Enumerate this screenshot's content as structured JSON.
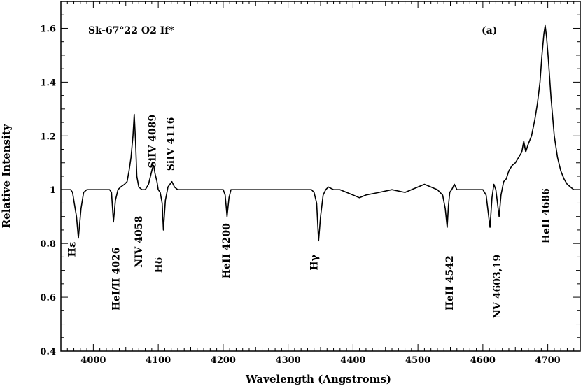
{
  "chart_data": {
    "type": "line",
    "title": "Sk-67°22 O2 If*",
    "panel_label": "(a)",
    "xlabel": "Wavelength (Angstroms)",
    "ylabel": "Relative Intensity",
    "xlim": [
      3950,
      4750
    ],
    "ylim": [
      0.4,
      1.7
    ],
    "x_ticks": [
      4000,
      4100,
      4200,
      4300,
      4400,
      4500,
      4600,
      4700
    ],
    "x_tick_labels": [
      "4000",
      "4100",
      "4200",
      "4300",
      "4400",
      "4500",
      "4600",
      "4700"
    ],
    "y_ticks": [
      0.4,
      0.6,
      0.8,
      1.0,
      1.2,
      1.4,
      1.6
    ],
    "y_tick_labels": [
      "0.4",
      "0.6",
      "0.8",
      "1",
      "1.2",
      "1.4",
      "1.6"
    ],
    "grid": false,
    "series": [
      {
        "x": [
          3950,
          3960,
          3965,
          3968,
          3970,
          3974,
          3977,
          3981,
          3985,
          3990,
          4000,
          4010,
          4020,
          4025,
          4028,
          4031,
          4034,
          4038,
          4042,
          4048,
          4052,
          4055,
          4058,
          4061,
          4063,
          4065,
          4067,
          4070,
          4075,
          4080,
          4085,
          4088,
          4091,
          4093,
          4095,
          4098,
          4100,
          4103,
          4106,
          4108,
          4111,
          4115,
          4118,
          4121,
          4125,
          4130,
          4140,
          4150,
          4160,
          4170,
          4180,
          4190,
          4195,
          4200,
          4203,
          4206,
          4209,
          4212,
          4216,
          4220,
          4240,
          4260,
          4280,
          4300,
          4320,
          4330,
          4336,
          4340,
          4344,
          4347,
          4350,
          4354,
          4358,
          4362,
          4370,
          4380,
          4400,
          4410,
          4420,
          4440,
          4460,
          4480,
          4500,
          4510,
          4520,
          4530,
          4538,
          4542,
          4545,
          4547,
          4549,
          4552,
          4556,
          4560,
          4570,
          4580,
          4590,
          4600,
          4605,
          4608,
          4611,
          4614,
          4617,
          4620,
          4622,
          4625,
          4628,
          4632,
          4636,
          4640,
          4645,
          4650,
          4655,
          4660,
          4663,
          4666,
          4670,
          4675,
          4680,
          4684,
          4688,
          4691,
          4694,
          4696,
          4698,
          4701,
          4705,
          4710,
          4715,
          4720,
          4725,
          4730,
          4735,
          4740,
          4745,
          4750
        ],
        "values": [
          1.0,
          1.0,
          1.0,
          0.99,
          0.96,
          0.9,
          0.82,
          0.93,
          0.99,
          1.0,
          1.0,
          1.0,
          1.0,
          1.0,
          0.99,
          0.88,
          0.96,
          1.0,
          1.01,
          1.02,
          1.03,
          1.07,
          1.12,
          1.2,
          1.28,
          1.18,
          1.05,
          1.01,
          1.0,
          1.0,
          1.02,
          1.05,
          1.08,
          1.09,
          1.06,
          1.03,
          1.0,
          0.99,
          0.95,
          0.85,
          0.96,
          1.01,
          1.02,
          1.03,
          1.01,
          1.0,
          1.0,
          1.0,
          1.0,
          1.0,
          1.0,
          1.0,
          1.0,
          1.0,
          0.98,
          0.9,
          0.97,
          1.0,
          1.0,
          1.0,
          1.0,
          1.0,
          1.0,
          1.0,
          1.0,
          1.0,
          1.0,
          0.99,
          0.95,
          0.81,
          0.9,
          0.98,
          1.0,
          1.01,
          1.0,
          1.0,
          0.98,
          0.97,
          0.98,
          0.99,
          1.0,
          0.99,
          1.01,
          1.02,
          1.01,
          1.0,
          0.98,
          0.93,
          0.86,
          0.94,
          0.99,
          1.0,
          1.02,
          1.0,
          1.0,
          1.0,
          1.0,
          1.0,
          0.98,
          0.92,
          0.86,
          0.97,
          1.02,
          1.0,
          0.96,
          0.9,
          0.98,
          1.03,
          1.04,
          1.07,
          1.09,
          1.1,
          1.12,
          1.14,
          1.18,
          1.14,
          1.17,
          1.2,
          1.26,
          1.32,
          1.4,
          1.5,
          1.58,
          1.61,
          1.57,
          1.48,
          1.34,
          1.2,
          1.12,
          1.07,
          1.04,
          1.02,
          1.01,
          1.0,
          1.0,
          1.0
        ]
      }
    ],
    "annotations": [
      {
        "text": "Hε",
        "x": 3972,
        "y": 0.75,
        "rotate": -90
      },
      {
        "text": "HeI/II 4026",
        "x": 4040,
        "y": 0.55,
        "rotate": -90
      },
      {
        "text": "NIV 4058",
        "x": 4075,
        "y": 0.71,
        "rotate": -90
      },
      {
        "text": "Hδ",
        "x": 4106,
        "y": 0.69,
        "rotate": -90
      },
      {
        "text": "SiIV 4089",
        "x": 4096,
        "y": 1.08,
        "rotate": -90
      },
      {
        "text": "SiIV 4116",
        "x": 4124,
        "y": 1.07,
        "rotate": -90
      },
      {
        "text": "HeII 4200",
        "x": 4210,
        "y": 0.67,
        "rotate": -90
      },
      {
        "text": "Hγ",
        "x": 4345,
        "y": 0.7,
        "rotate": -90
      },
      {
        "text": "HeII 4542",
        "x": 4554,
        "y": 0.55,
        "rotate": -90
      },
      {
        "text": "NV 4603,19",
        "x": 4627,
        "y": 0.52,
        "rotate": -90
      },
      {
        "text": "HeII 4686",
        "x": 4702,
        "y": 0.8,
        "rotate": -90
      }
    ]
  }
}
